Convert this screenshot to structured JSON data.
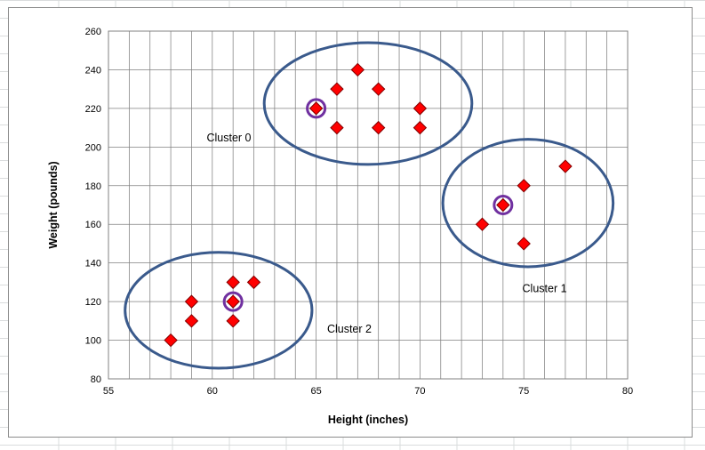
{
  "chart_data": {
    "type": "scatter",
    "title": "",
    "xlabel": "Height (inches)",
    "ylabel": "Weight (pounds)",
    "xlim": [
      55,
      80
    ],
    "ylim": [
      80,
      260
    ],
    "x_ticks": [
      55,
      60,
      65,
      70,
      75,
      80
    ],
    "y_ticks": [
      80,
      100,
      120,
      140,
      160,
      180,
      200,
      220,
      240,
      260
    ],
    "x_minor_gridline_step": 1,
    "y_gridline_step": 20,
    "grid": true,
    "legend": "none",
    "marker": "diamond",
    "marker_color": "#ff0000",
    "marker_edge_color": "#7f0000",
    "series": [
      {
        "points": [
          {
            "x": 58,
            "y": 100
          },
          {
            "x": 59,
            "y": 110
          },
          {
            "x": 59,
            "y": 120
          },
          {
            "x": 61,
            "y": 110
          },
          {
            "x": 61,
            "y": 120
          },
          {
            "x": 61,
            "y": 130
          },
          {
            "x": 62,
            "y": 130
          },
          {
            "x": 65,
            "y": 220
          },
          {
            "x": 66,
            "y": 210
          },
          {
            "x": 66,
            "y": 230
          },
          {
            "x": 67,
            "y": 240
          },
          {
            "x": 68,
            "y": 210
          },
          {
            "x": 68,
            "y": 230
          },
          {
            "x": 70,
            "y": 210
          },
          {
            "x": 70,
            "y": 220
          },
          {
            "x": 73,
            "y": 160
          },
          {
            "x": 74,
            "y": 170
          },
          {
            "x": 75,
            "y": 150
          },
          {
            "x": 75,
            "y": 180
          },
          {
            "x": 77,
            "y": 190
          }
        ]
      }
    ],
    "centroids": [
      {
        "x": 65,
        "y": 220
      },
      {
        "x": 74,
        "y": 170
      },
      {
        "x": 61,
        "y": 120
      }
    ],
    "centroid_color": "#7030a0",
    "clusters": [
      {
        "label": "Cluster 0",
        "cx": 67.5,
        "cy": 222.5,
        "rx": 5.0,
        "ry": 31.5,
        "label_x": 60.8,
        "label_y": 203
      },
      {
        "label": "Cluster 1",
        "cx": 75.2,
        "cy": 171,
        "rx": 4.1,
        "ry": 33,
        "label_x": 76.0,
        "label_y": 125
      },
      {
        "label": "Cluster 2",
        "cx": 60.3,
        "cy": 115.5,
        "rx": 4.5,
        "ry": 30,
        "label_x": 66.6,
        "label_y": 104
      }
    ],
    "cluster_outline_color": "#3a5a8c",
    "plot_border_color": "#808080",
    "grid_color": "#808080"
  }
}
